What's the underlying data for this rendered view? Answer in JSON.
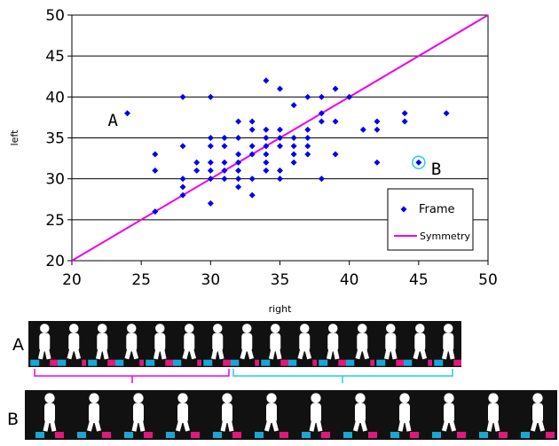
{
  "chart_data": {
    "type": "scatter",
    "xlabel": "right",
    "ylabel": "left",
    "xlim": [
      20,
      50
    ],
    "ylim": [
      20,
      50
    ],
    "xticks": [
      20,
      25,
      30,
      35,
      40,
      45,
      50
    ],
    "yticks": [
      20,
      25,
      30,
      35,
      40,
      45,
      50
    ],
    "grid": "horizontal",
    "legend_position": "bottom-right",
    "series": [
      {
        "name": "Frame",
        "color": "#0000ee",
        "marker": "diamond",
        "points": [
          [
            24,
            38
          ],
          [
            26,
            26
          ],
          [
            26,
            31
          ],
          [
            26,
            33
          ],
          [
            28,
            28
          ],
          [
            28,
            29
          ],
          [
            28,
            30
          ],
          [
            28,
            34
          ],
          [
            28,
            40
          ],
          [
            29,
            31
          ],
          [
            29,
            32
          ],
          [
            30,
            27
          ],
          [
            30,
            30
          ],
          [
            30,
            31
          ],
          [
            30,
            32
          ],
          [
            30,
            34
          ],
          [
            30,
            35
          ],
          [
            30,
            40
          ],
          [
            31,
            30
          ],
          [
            31,
            31
          ],
          [
            31,
            32
          ],
          [
            31,
            34
          ],
          [
            31,
            35
          ],
          [
            32,
            29
          ],
          [
            32,
            30
          ],
          [
            32,
            31
          ],
          [
            32,
            32
          ],
          [
            32,
            33
          ],
          [
            32,
            35
          ],
          [
            32,
            37
          ],
          [
            33,
            28
          ],
          [
            33,
            30
          ],
          [
            33,
            33
          ],
          [
            33,
            34
          ],
          [
            33,
            36
          ],
          [
            33,
            37
          ],
          [
            34,
            31
          ],
          [
            34,
            32
          ],
          [
            34,
            33
          ],
          [
            34,
            34
          ],
          [
            34,
            35
          ],
          [
            34,
            36
          ],
          [
            34,
            42
          ],
          [
            35,
            30
          ],
          [
            35,
            31
          ],
          [
            35,
            34
          ],
          [
            35,
            35
          ],
          [
            35,
            36
          ],
          [
            35,
            41
          ],
          [
            36,
            32
          ],
          [
            36,
            33
          ],
          [
            36,
            34
          ],
          [
            36,
            35
          ],
          [
            36,
            39
          ],
          [
            37,
            33
          ],
          [
            37,
            34
          ],
          [
            37,
            35
          ],
          [
            37,
            36
          ],
          [
            37,
            40
          ],
          [
            38,
            30
          ],
          [
            38,
            37
          ],
          [
            38,
            38
          ],
          [
            38,
            40
          ],
          [
            39,
            33
          ],
          [
            39,
            37
          ],
          [
            39,
            41
          ],
          [
            40,
            40
          ],
          [
            41,
            36
          ],
          [
            42,
            32
          ],
          [
            42,
            36
          ],
          [
            42,
            37
          ],
          [
            44,
            37
          ],
          [
            44,
            38
          ],
          [
            45,
            32
          ],
          [
            47,
            38
          ]
        ]
      },
      {
        "name": "Symmetry",
        "color": "#ee00ee",
        "type": "line",
        "points": [
          [
            20,
            20
          ],
          [
            50,
            50
          ]
        ]
      }
    ],
    "annotations": [
      {
        "text": "A",
        "x": 24,
        "y": 38
      },
      {
        "text": "B",
        "x": 45,
        "y": 32,
        "circled": true
      }
    ]
  },
  "strips": [
    {
      "label": "A",
      "frames": 15
    },
    {
      "label": "B",
      "frames": 12
    }
  ],
  "colors": {
    "left_foot": "#e0197d",
    "right_foot": "#1aa7d6",
    "silhouette": "#ffffff",
    "background": "#111111",
    "bracket_a_first": "#ee00ee",
    "bracket_a_second": "#22ccee"
  }
}
